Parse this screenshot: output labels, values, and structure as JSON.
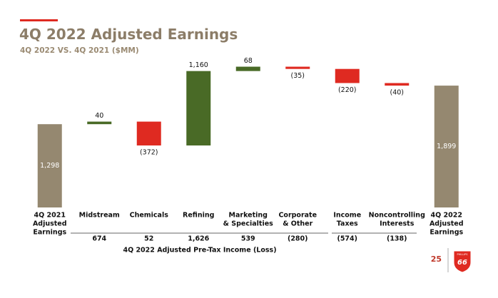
{
  "chart_data": {
    "type": "waterfall",
    "title": "4Q 2022 Adjusted Earnings",
    "subtitle": "4Q 2022 VS. 4Q 2021 ($MM)",
    "categories": [
      [
        "4Q 2021",
        "Adjusted",
        "Earnings"
      ],
      [
        "Midstream"
      ],
      [
        "Chemicals"
      ],
      [
        "Refining"
      ],
      [
        "Marketing",
        "& Specialties"
      ],
      [
        "Corporate",
        "& Other"
      ],
      [
        "Income",
        "Taxes"
      ],
      [
        "Noncontrolling",
        "Interests"
      ],
      [
        "4Q 2022",
        "Adjusted",
        "Earnings"
      ]
    ],
    "values": [
      1298,
      40,
      -372,
      1160,
      68,
      -35,
      -220,
      -40,
      1899
    ],
    "value_labels": [
      "1,298",
      "40",
      "(372)",
      "1,160",
      "68",
      "(35)",
      "(220)",
      "(40)",
      "1,899"
    ],
    "total_indices": [
      0,
      8
    ],
    "colors": {
      "total": "#958870",
      "increase": "#496a26",
      "decrease": "#df2a21"
    },
    "ylim": [
      -300,
      2400
    ],
    "pretax": {
      "label": "4Q 2022 Adjusted Pre-Tax Income (Loss)",
      "values": [
        null,
        674,
        52,
        1626,
        539,
        -280,
        -574,
        -138,
        null
      ],
      "value_labels": [
        null,
        "674",
        "52",
        "1,626",
        "539",
        "(280)",
        "(574)",
        "(138)",
        null
      ]
    },
    "page_number": "25",
    "logo": {
      "top": "PHILLIPS",
      "number": "66"
    }
  }
}
